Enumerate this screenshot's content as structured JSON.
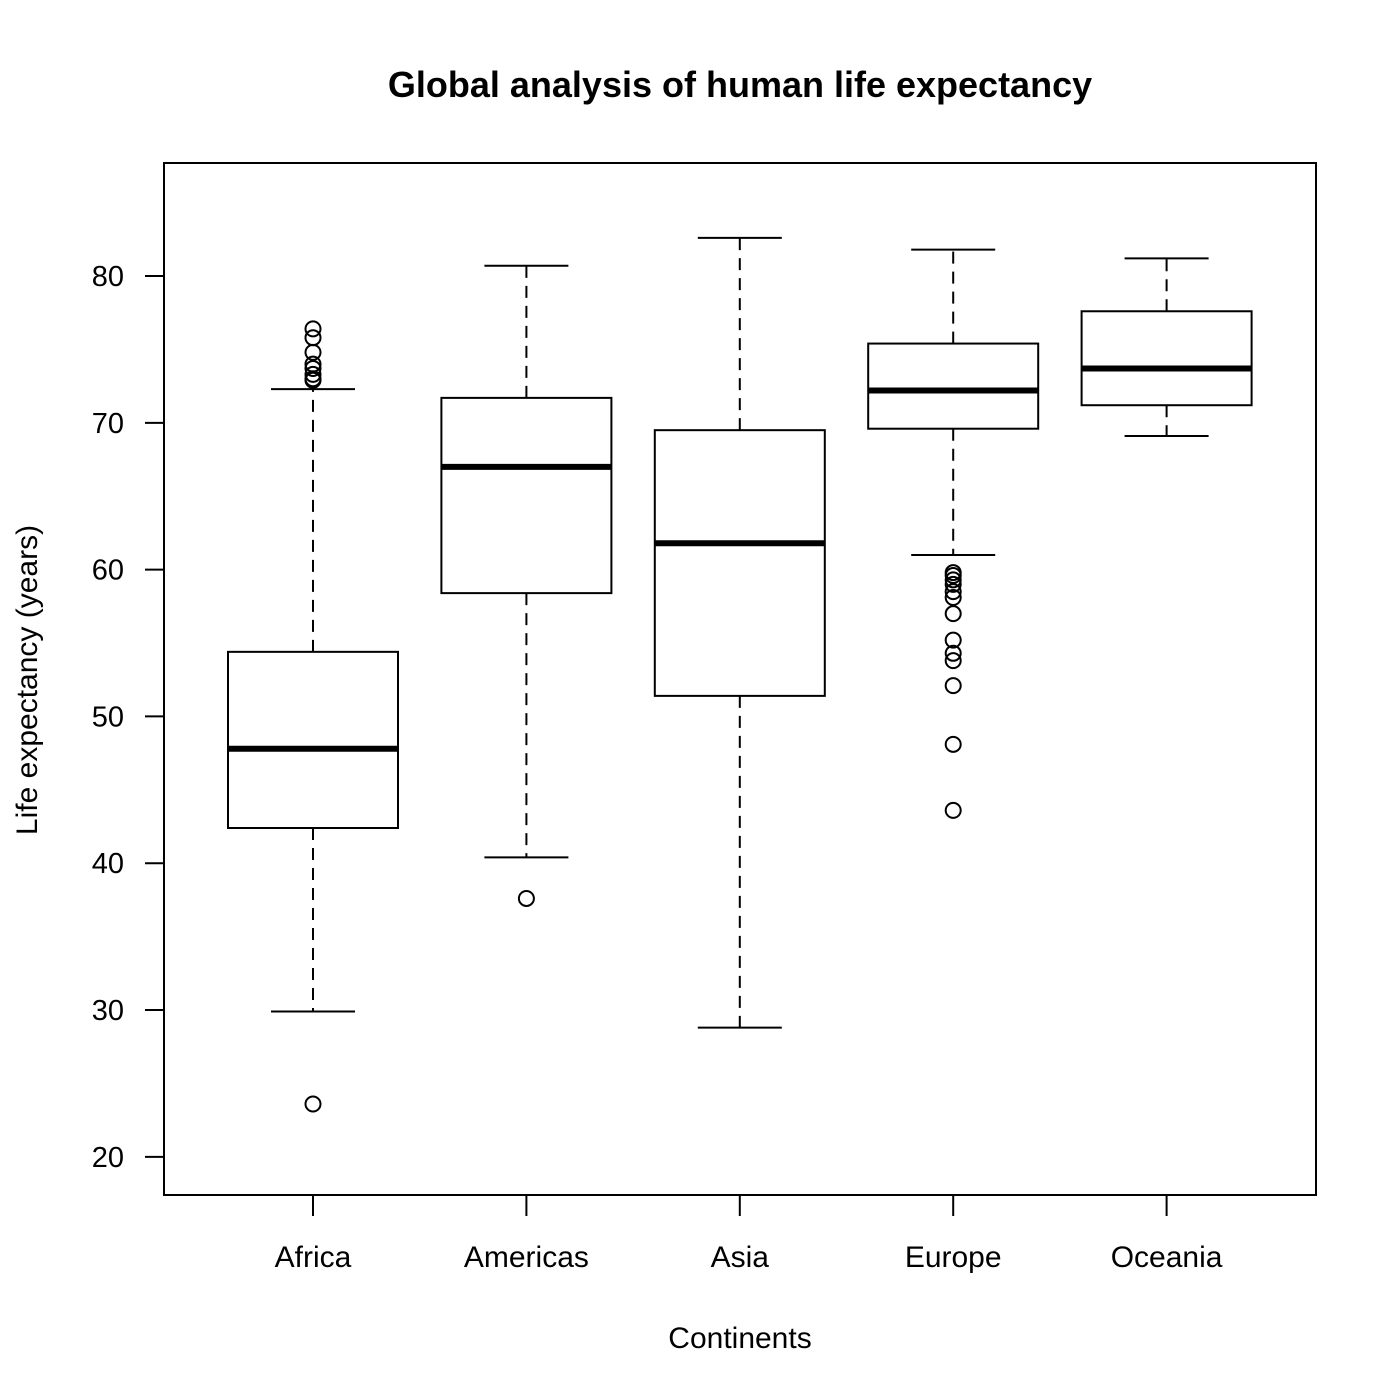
{
  "chart_data": {
    "type": "boxplot",
    "title": "Global analysis of human life expectancy",
    "xlabel": "Continents",
    "ylabel": "Life expectancy (years)",
    "ylim": [
      17.4,
      87.7
    ],
    "yticks": [
      20,
      30,
      40,
      50,
      60,
      70,
      80
    ],
    "grid": false,
    "categories": [
      "Africa",
      "Americas",
      "Asia",
      "Europe",
      "Oceania"
    ],
    "boxes": [
      {
        "name": "Africa",
        "whisker_low": 29.9,
        "q1": 42.4,
        "median": 47.8,
        "q3": 54.4,
        "whisker_high": 72.3,
        "outliers": [
          23.6,
          72.9,
          73.0,
          73.3,
          73.7,
          74.0,
          74.8,
          75.8,
          76.4
        ]
      },
      {
        "name": "Americas",
        "whisker_low": 40.4,
        "q1": 58.4,
        "median": 67.0,
        "q3": 71.7,
        "whisker_high": 80.7,
        "outliers": [
          37.6
        ]
      },
      {
        "name": "Asia",
        "whisker_low": 28.8,
        "q1": 51.4,
        "median": 61.8,
        "q3": 69.5,
        "whisker_high": 82.6,
        "outliers": []
      },
      {
        "name": "Europe",
        "whisker_low": 61.0,
        "q1": 69.6,
        "median": 72.2,
        "q3": 75.4,
        "whisker_high": 81.8,
        "outliers": [
          43.6,
          48.1,
          52.1,
          53.8,
          54.3,
          55.2,
          57.0,
          58.1,
          58.5,
          59.0,
          59.3,
          59.6,
          59.8
        ]
      },
      {
        "name": "Oceania",
        "whisker_low": 69.1,
        "q1": 71.2,
        "median": 73.7,
        "q3": 77.6,
        "whisker_high": 81.2,
        "outliers": []
      }
    ]
  }
}
